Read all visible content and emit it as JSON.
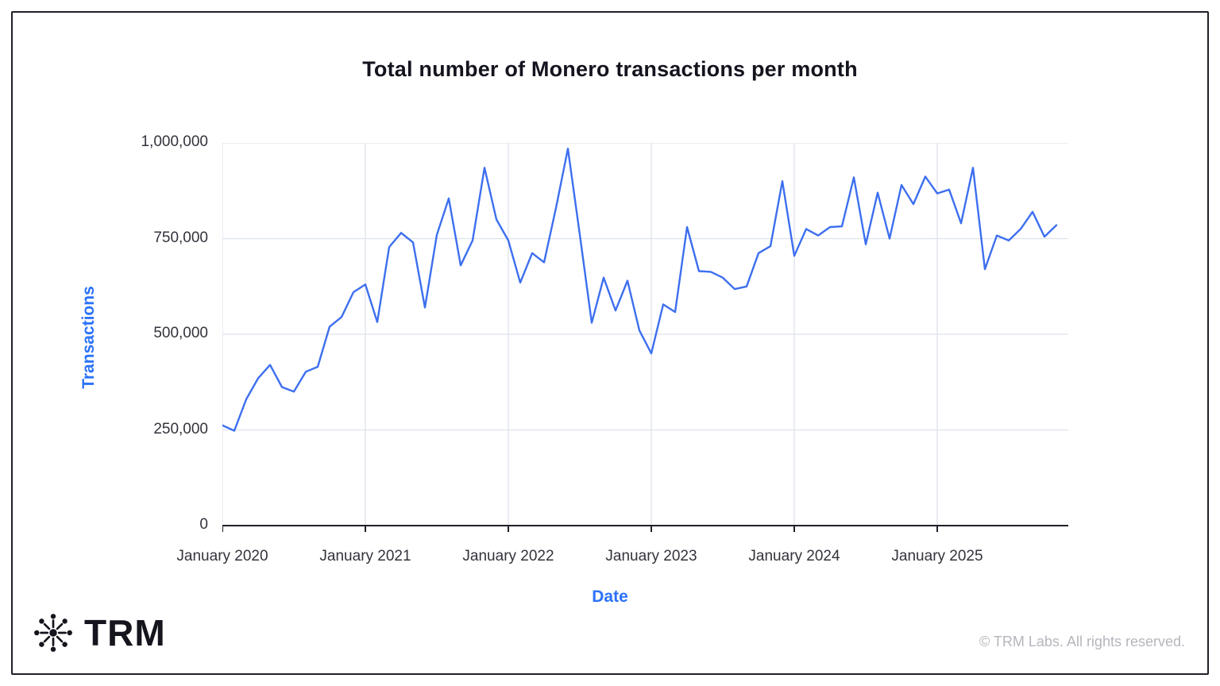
{
  "title": "Total number of Monero transactions per month",
  "axis": {
    "x_label": "Date",
    "y_label": "Transactions"
  },
  "footer": {
    "brand": "TRM",
    "copyright": "© TRM Labs. All rights reserved."
  },
  "colors": {
    "accent_blue": "#2B72F8",
    "line_blue": "#3D6FEF",
    "grid": "#DEE2EB",
    "axis": "#21212B",
    "title_text": "#14141F",
    "tick_text": "#33333D",
    "muted_text": "#B5B5BD",
    "border": "#1F1F29",
    "background": "#FFFFFF"
  },
  "chart_data": {
    "type": "line",
    "title": "Total number of Monero transactions per month",
    "xlabel": "Date",
    "ylabel": "Transactions",
    "ylim": [
      0,
      1000000
    ],
    "grid": true,
    "legend": "none",
    "y_ticks": [
      0,
      250000,
      500000,
      750000,
      1000000
    ],
    "y_tick_labels": [
      "0",
      "250,000",
      "500,000",
      "750,000",
      "1,000,000"
    ],
    "x_tick_labels": [
      "January 2020",
      "January 2021",
      "January 2022",
      "January 2023",
      "January 2024",
      "January 2025"
    ],
    "x_tick_month_indices": [
      0,
      12,
      24,
      36,
      48,
      60
    ],
    "x": [
      "2020-01",
      "2020-02",
      "2020-03",
      "2020-04",
      "2020-05",
      "2020-06",
      "2020-07",
      "2020-08",
      "2020-09",
      "2020-10",
      "2020-11",
      "2020-12",
      "2021-01",
      "2021-02",
      "2021-03",
      "2021-04",
      "2021-05",
      "2021-06",
      "2021-07",
      "2021-08",
      "2021-09",
      "2021-10",
      "2021-11",
      "2021-12",
      "2022-01",
      "2022-02",
      "2022-03",
      "2022-04",
      "2022-05",
      "2022-06",
      "2022-07",
      "2022-08",
      "2022-09",
      "2022-10",
      "2022-11",
      "2022-12",
      "2023-01",
      "2023-02",
      "2023-03",
      "2023-04",
      "2023-05",
      "2023-06",
      "2023-07",
      "2023-08",
      "2023-09",
      "2023-10",
      "2023-11",
      "2023-12",
      "2024-01",
      "2024-02",
      "2024-03",
      "2024-04",
      "2024-05",
      "2024-06",
      "2024-07",
      "2024-08",
      "2024-09",
      "2024-10",
      "2024-11",
      "2024-12",
      "2025-01",
      "2025-02",
      "2025-03",
      "2025-04",
      "2025-05",
      "2025-06",
      "2025-07",
      "2025-08",
      "2025-09",
      "2025-10",
      "2025-11"
    ],
    "values": [
      262000,
      248000,
      330000,
      385000,
      420000,
      362000,
      350000,
      402000,
      415000,
      520000,
      545000,
      610000,
      630000,
      532000,
      728000,
      765000,
      740000,
      570000,
      760000,
      855000,
      680000,
      745000,
      935000,
      800000,
      745000,
      635000,
      712000,
      688000,
      830000,
      985000,
      760000,
      530000,
      648000,
      562000,
      640000,
      510000,
      450000,
      578000,
      558000,
      780000,
      665000,
      663000,
      648000,
      618000,
      625000,
      712000,
      730000,
      900000,
      705000,
      775000,
      758000,
      780000,
      782000,
      910000,
      735000,
      870000,
      750000,
      890000,
      840000,
      912000,
      868000,
      878000,
      790000,
      935000,
      670000,
      758000,
      745000,
      775000,
      820000,
      755000,
      785000
    ]
  }
}
